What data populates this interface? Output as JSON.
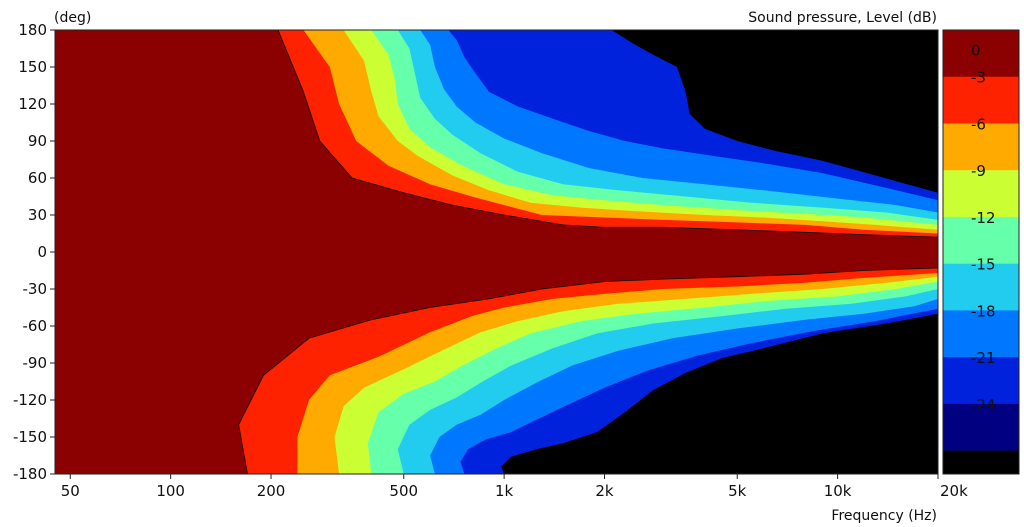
{
  "chart_data": {
    "type": "heatmap",
    "subtype": "filled-contour directivity map",
    "title": "",
    "xlabel": "Frequency  (Hz)",
    "ylabel": "(deg)",
    "colorbar_title": "Sound pressure, Level  (dB)",
    "x_scale": "log",
    "xlim": [
      45,
      20000
    ],
    "ylim": [
      -180,
      180
    ],
    "x_ticks": [
      {
        "value": 50,
        "label": "50"
      },
      {
        "value": 100,
        "label": "100"
      },
      {
        "value": 200,
        "label": "200"
      },
      {
        "value": 500,
        "label": "500"
      },
      {
        "value": 1000,
        "label": "1k"
      },
      {
        "value": 2000,
        "label": "2k"
      },
      {
        "value": 5000,
        "label": "5k"
      },
      {
        "value": 10000,
        "label": "10k"
      },
      {
        "value": 20000,
        "label": "20k"
      }
    ],
    "y_ticks": [
      {
        "value": 180,
        "label": "180"
      },
      {
        "value": 150,
        "label": "150"
      },
      {
        "value": 120,
        "label": "120"
      },
      {
        "value": 90,
        "label": "90"
      },
      {
        "value": 60,
        "label": "60"
      },
      {
        "value": 30,
        "label": "30"
      },
      {
        "value": 0,
        "label": "0"
      },
      {
        "value": -30,
        "label": "-30"
      },
      {
        "value": -60,
        "label": "-60"
      },
      {
        "value": -90,
        "label": "-90"
      },
      {
        "value": -120,
        "label": "-120"
      },
      {
        "value": -150,
        "label": "-150"
      },
      {
        "value": -180,
        "label": "-180"
      }
    ],
    "colorbar": [
      {
        "label": "0",
        "color": "#8b0000"
      },
      {
        "label": "-3",
        "color": "#ff2200"
      },
      {
        "label": "-6",
        "color": "#ffaa00"
      },
      {
        "label": "-9",
        "color": "#ccff33"
      },
      {
        "label": "-12",
        "color": "#66ffaa"
      },
      {
        "label": "-15",
        "color": "#22ccee"
      },
      {
        "label": "-18",
        "color": "#0077ff"
      },
      {
        "label": "-21",
        "color": "#0022dd"
      },
      {
        "label": "-24",
        "color": "#000080"
      }
    ],
    "below_range_color": "#000000",
    "contours_upper": [
      {
        "level": -3,
        "points": [
          [
            45,
            180
          ],
          [
            210,
            180
          ],
          [
            250,
            130
          ],
          [
            280,
            90
          ],
          [
            350,
            60
          ],
          [
            500,
            48
          ],
          [
            700,
            38
          ],
          [
            1000,
            30
          ],
          [
            1500,
            22
          ],
          [
            2000,
            20
          ],
          [
            3000,
            20
          ],
          [
            5000,
            18
          ],
          [
            8000,
            16
          ],
          [
            12000,
            14
          ],
          [
            20000,
            12
          ]
        ]
      },
      {
        "level": -6,
        "points": [
          [
            250,
            180
          ],
          [
            300,
            150
          ],
          [
            320,
            120
          ],
          [
            360,
            90
          ],
          [
            450,
            70
          ],
          [
            600,
            55
          ],
          [
            800,
            45
          ],
          [
            1000,
            38
          ],
          [
            1300,
            30
          ],
          [
            2000,
            28
          ],
          [
            3000,
            26
          ],
          [
            5000,
            24
          ],
          [
            8000,
            22
          ],
          [
            12000,
            18
          ],
          [
            20000,
            15
          ]
        ]
      },
      {
        "level": -9,
        "points": [
          [
            330,
            180
          ],
          [
            380,
            155
          ],
          [
            400,
            130
          ],
          [
            420,
            110
          ],
          [
            480,
            90
          ],
          [
            550,
            78
          ],
          [
            700,
            62
          ],
          [
            900,
            50
          ],
          [
            1200,
            40
          ],
          [
            1700,
            36
          ],
          [
            2500,
            33
          ],
          [
            4000,
            30
          ],
          [
            6000,
            28
          ],
          [
            9000,
            25
          ],
          [
            13000,
            22
          ],
          [
            20000,
            18
          ]
        ]
      },
      {
        "level": -12,
        "points": [
          [
            400,
            180
          ],
          [
            450,
            160
          ],
          [
            470,
            140
          ],
          [
            480,
            120
          ],
          [
            520,
            100
          ],
          [
            600,
            85
          ],
          [
            750,
            70
          ],
          [
            1000,
            55
          ],
          [
            1400,
            46
          ],
          [
            2000,
            42
          ],
          [
            3000,
            38
          ],
          [
            5000,
            34
          ],
          [
            8000,
            31
          ],
          [
            12000,
            28
          ],
          [
            20000,
            22
          ]
        ]
      },
      {
        "level": -15,
        "points": [
          [
            480,
            180
          ],
          [
            520,
            165
          ],
          [
            540,
            145
          ],
          [
            560,
            125
          ],
          [
            620,
            108
          ],
          [
            700,
            95
          ],
          [
            850,
            80
          ],
          [
            1100,
            65
          ],
          [
            1500,
            55
          ],
          [
            2200,
            50
          ],
          [
            3500,
            45
          ],
          [
            5500,
            40
          ],
          [
            9000,
            36
          ],
          [
            14000,
            32
          ],
          [
            20000,
            26
          ]
        ]
      },
      {
        "level": -18,
        "points": [
          [
            560,
            180
          ],
          [
            600,
            168
          ],
          [
            620,
            150
          ],
          [
            660,
            132
          ],
          [
            720,
            118
          ],
          [
            820,
            105
          ],
          [
            1000,
            92
          ],
          [
            1300,
            80
          ],
          [
            1800,
            68
          ],
          [
            2600,
            60
          ],
          [
            4000,
            55
          ],
          [
            6000,
            50
          ],
          [
            9500,
            44
          ],
          [
            15000,
            38
          ],
          [
            20000,
            32
          ]
        ]
      },
      {
        "level": -21,
        "points": [
          [
            680,
            180
          ],
          [
            720,
            172
          ],
          [
            760,
            158
          ],
          [
            820,
            145
          ],
          [
            900,
            130
          ],
          [
            1100,
            118
          ],
          [
            1400,
            108
          ],
          [
            1800,
            98
          ],
          [
            2300,
            90
          ],
          [
            3000,
            84
          ],
          [
            4200,
            78
          ],
          [
            6000,
            72
          ],
          [
            9000,
            64
          ],
          [
            14000,
            52
          ],
          [
            20000,
            42
          ]
        ]
      },
      {
        "level": -24,
        "points": [
          [
            2100,
            180
          ],
          [
            2400,
            170
          ],
          [
            2800,
            160
          ],
          [
            3300,
            150
          ],
          [
            3500,
            130
          ],
          [
            3600,
            112
          ],
          [
            4000,
            100
          ],
          [
            5000,
            90
          ],
          [
            6500,
            82
          ],
          [
            9000,
            74
          ],
          [
            13000,
            62
          ],
          [
            20000,
            48
          ]
        ]
      }
    ],
    "contours_lower": [
      {
        "level": -3,
        "points": [
          [
            45,
            -180
          ],
          [
            170,
            -180
          ],
          [
            160,
            -140
          ],
          [
            190,
            -100
          ],
          [
            260,
            -70
          ],
          [
            400,
            -55
          ],
          [
            600,
            -45
          ],
          [
            900,
            -38
          ],
          [
            1300,
            -30
          ],
          [
            2000,
            -24
          ],
          [
            3000,
            -22
          ],
          [
            5000,
            -20
          ],
          [
            8000,
            -18
          ],
          [
            12000,
            -15
          ],
          [
            20000,
            -13
          ]
        ]
      },
      {
        "level": -6,
        "points": [
          [
            240,
            -180
          ],
          [
            240,
            -150
          ],
          [
            260,
            -120
          ],
          [
            300,
            -100
          ],
          [
            420,
            -85
          ],
          [
            600,
            -65
          ],
          [
            800,
            -52
          ],
          [
            1000,
            -45
          ],
          [
            1400,
            -38
          ],
          [
            2000,
            -34
          ],
          [
            3000,
            -30
          ],
          [
            5000,
            -28
          ],
          [
            8000,
            -25
          ],
          [
            12000,
            -21
          ],
          [
            20000,
            -17
          ]
        ]
      },
      {
        "level": -9,
        "points": [
          [
            320,
            -180
          ],
          [
            310,
            -150
          ],
          [
            330,
            -125
          ],
          [
            380,
            -110
          ],
          [
            500,
            -95
          ],
          [
            650,
            -80
          ],
          [
            850,
            -65
          ],
          [
            1100,
            -56
          ],
          [
            1500,
            -48
          ],
          [
            2200,
            -42
          ],
          [
            3500,
            -38
          ],
          [
            5500,
            -34
          ],
          [
            9000,
            -30
          ],
          [
            14000,
            -25
          ],
          [
            20000,
            -20
          ]
        ]
      },
      {
        "level": -12,
        "points": [
          [
            400,
            -180
          ],
          [
            390,
            -155
          ],
          [
            420,
            -130
          ],
          [
            500,
            -115
          ],
          [
            620,
            -105
          ],
          [
            750,
            -92
          ],
          [
            950,
            -78
          ],
          [
            1200,
            -66
          ],
          [
            1700,
            -56
          ],
          [
            2500,
            -50
          ],
          [
            4000,
            -45
          ],
          [
            6000,
            -40
          ],
          [
            10000,
            -36
          ],
          [
            15000,
            -30
          ],
          [
            20000,
            -24
          ]
        ]
      },
      {
        "level": -15,
        "points": [
          [
            500,
            -180
          ],
          [
            480,
            -160
          ],
          [
            520,
            -140
          ],
          [
            600,
            -128
          ],
          [
            720,
            -118
          ],
          [
            850,
            -106
          ],
          [
            1050,
            -92
          ],
          [
            1400,
            -78
          ],
          [
            1900,
            -66
          ],
          [
            2800,
            -58
          ],
          [
            4500,
            -52
          ],
          [
            7000,
            -46
          ],
          [
            11000,
            -42
          ],
          [
            16000,
            -36
          ],
          [
            20000,
            -30
          ]
        ]
      },
      {
        "level": -18,
        "points": [
          [
            620,
            -180
          ],
          [
            600,
            -165
          ],
          [
            640,
            -150
          ],
          [
            720,
            -140
          ],
          [
            850,
            -132
          ],
          [
            1000,
            -120
          ],
          [
            1250,
            -106
          ],
          [
            1600,
            -92
          ],
          [
            2200,
            -80
          ],
          [
            3200,
            -70
          ],
          [
            5000,
            -62
          ],
          [
            8000,
            -55
          ],
          [
            12000,
            -50
          ],
          [
            17000,
            -44
          ],
          [
            20000,
            -38
          ]
        ]
      },
      {
        "level": -21,
        "points": [
          [
            760,
            -180
          ],
          [
            740,
            -170
          ],
          [
            780,
            -160
          ],
          [
            880,
            -152
          ],
          [
            1050,
            -146
          ],
          [
            1250,
            -136
          ],
          [
            1550,
            -124
          ],
          [
            2000,
            -110
          ],
          [
            2700,
            -96
          ],
          [
            3800,
            -84
          ],
          [
            5500,
            -74
          ],
          [
            8500,
            -64
          ],
          [
            13000,
            -56
          ],
          [
            20000,
            -46
          ]
        ]
      },
      {
        "level": -24,
        "points": [
          [
            1000,
            -180
          ],
          [
            980,
            -174
          ],
          [
            1050,
            -166
          ],
          [
            1250,
            -160
          ],
          [
            1500,
            -155
          ],
          [
            1900,
            -146
          ],
          [
            2300,
            -130
          ],
          [
            2800,
            -112
          ],
          [
            3500,
            -98
          ],
          [
            4500,
            -86
          ],
          [
            6000,
            -78
          ],
          [
            9000,
            -66
          ],
          [
            14000,
            -58
          ],
          [
            20000,
            -50
          ]
        ]
      }
    ]
  }
}
